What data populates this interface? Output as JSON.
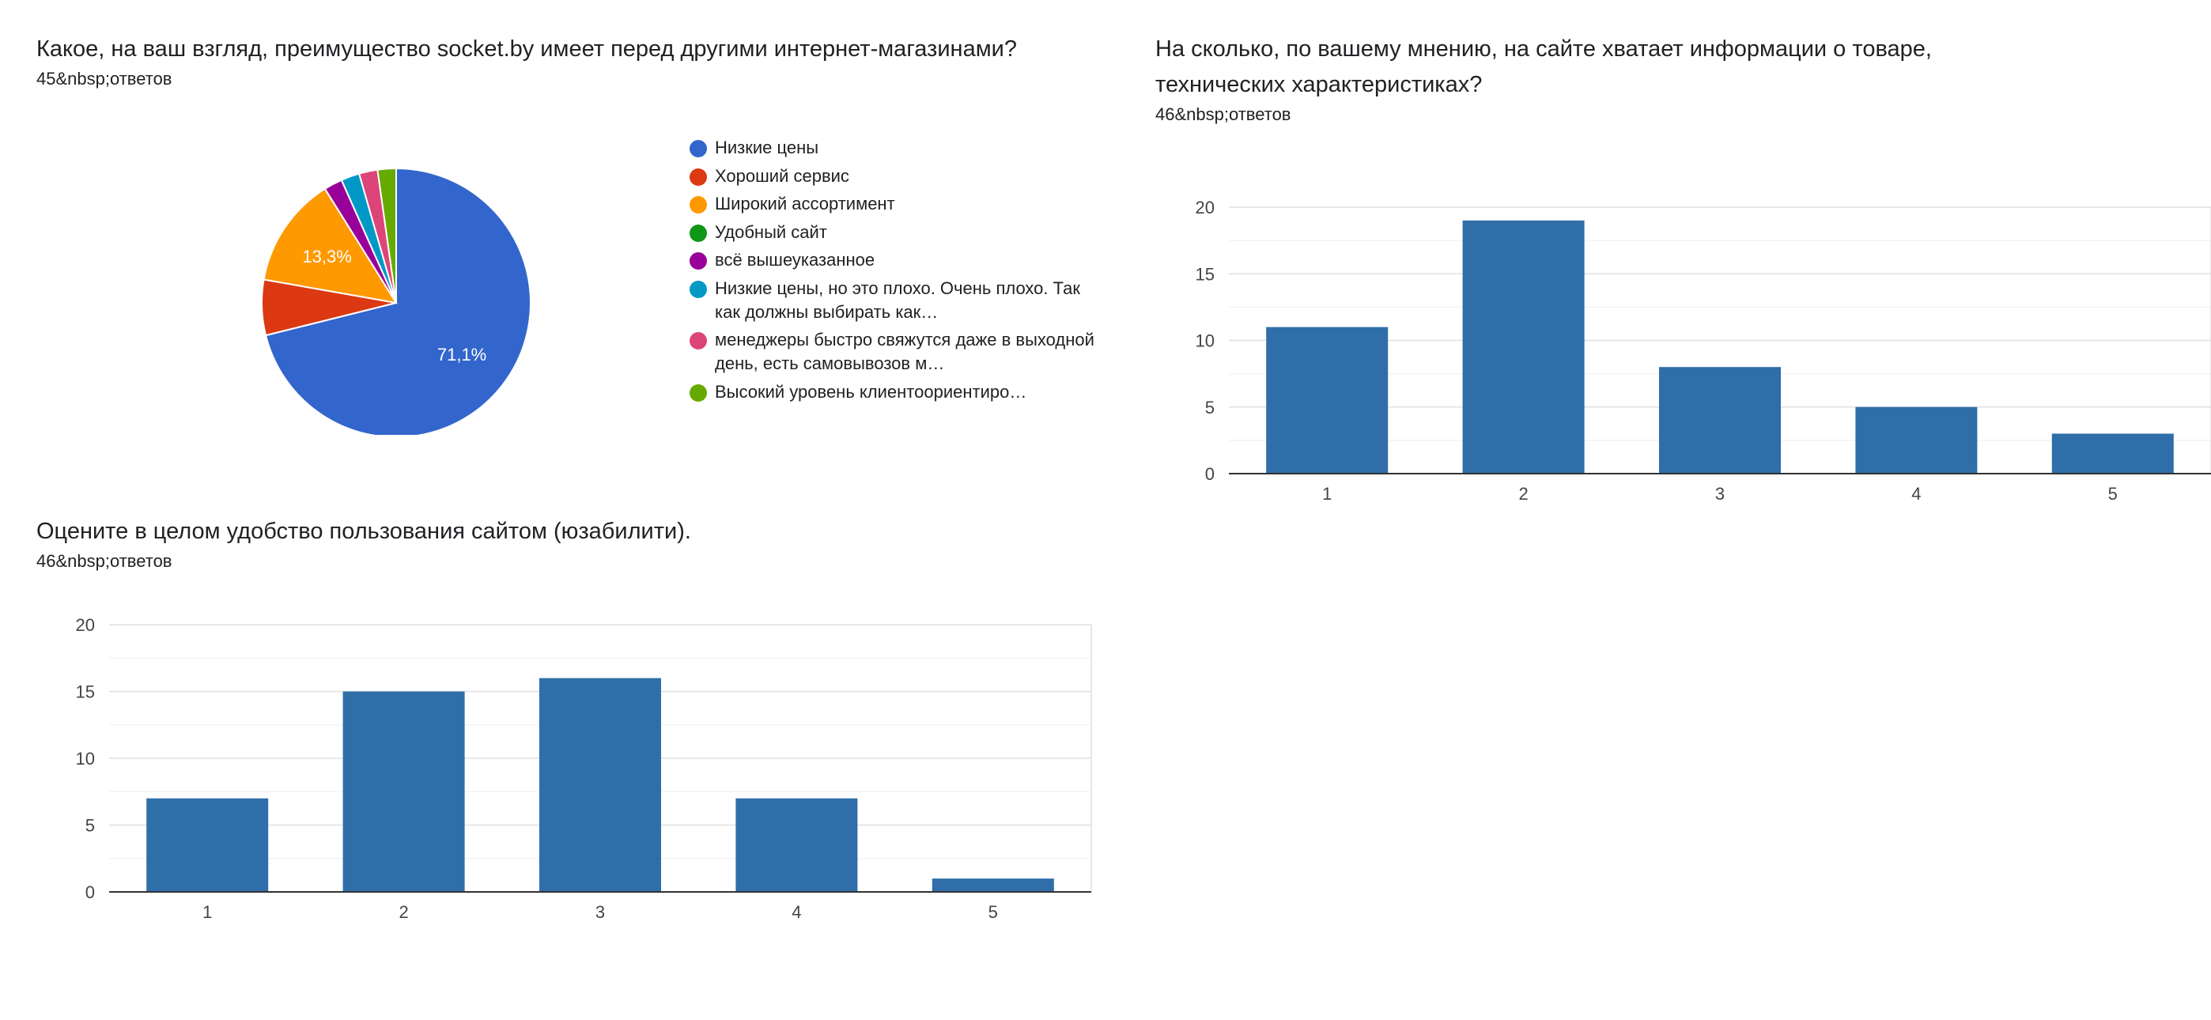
{
  "charts": {
    "q1": {
      "title": "Какое, на ваш взгляд, преимущество socket.by имеет перед другими интернет-магазинами?",
      "responses": "45&nbsp;ответов"
    },
    "q2": {
      "title": "На сколько, по вашему мнению, на сайте хватает информации о товаре, технических характеристиках?",
      "responses": "46&nbsp;ответов"
    },
    "q3": {
      "title": "Оцените в целом удобство пользования сайтом (юзабилити).",
      "responses": "46&nbsp;ответов"
    }
  },
  "chart_data": [
    {
      "type": "pie",
      "title": "Какое, на ваш взгляд, преимущество socket.by имеет перед другими интернет-магазинами?",
      "legend_position": "right",
      "slices": [
        {
          "label": "Низкие цены",
          "value": 32,
          "percent_label": "71,1%",
          "color": "#3366cc"
        },
        {
          "label": "Хороший сервис",
          "value": 3,
          "percent_label": "",
          "color": "#dc3912"
        },
        {
          "label": "Широкий ассортимент",
          "value": 6,
          "percent_label": "13,3%",
          "color": "#ff9900"
        },
        {
          "label": "Удобный сайт",
          "value": 0,
          "percent_label": "",
          "color": "#109618"
        },
        {
          "label": "всё вышеуказанное",
          "value": 1,
          "percent_label": "",
          "color": "#990099"
        },
        {
          "label": "Низкие цены, но это плохо. Очень плохо. Так как должны выбирать как…",
          "value": 1,
          "percent_label": "",
          "color": "#0099c6"
        },
        {
          "label": "менеджеры быстро свяжутся даже в выходной день, есть самовывозов м…",
          "value": 1,
          "percent_label": "",
          "color": "#dd4477"
        },
        {
          "label": "Высокий уровень клиентоориентиро…",
          "value": 1,
          "percent_label": "",
          "color": "#66aa00"
        }
      ]
    },
    {
      "type": "bar",
      "title": "На сколько, по вашему мнению, на сайте хватает информации о товаре, технических характеристиках?",
      "categories": [
        "1",
        "2",
        "3",
        "4",
        "5"
      ],
      "values": [
        11,
        19,
        8,
        5,
        3
      ],
      "ylim": [
        0,
        20
      ],
      "yticks": [
        0,
        5,
        10,
        15,
        20
      ],
      "grid": true,
      "color": "#2f6ea9"
    },
    {
      "type": "bar",
      "title": "Оцените в целом удобство пользования сайтом (юзабилити).",
      "categories": [
        "1",
        "2",
        "3",
        "4",
        "5"
      ],
      "values": [
        7,
        15,
        16,
        7,
        1
      ],
      "ylim": [
        0,
        20
      ],
      "yticks": [
        0,
        5,
        10,
        15,
        20
      ],
      "grid": true,
      "color": "#2f6ea9"
    }
  ]
}
